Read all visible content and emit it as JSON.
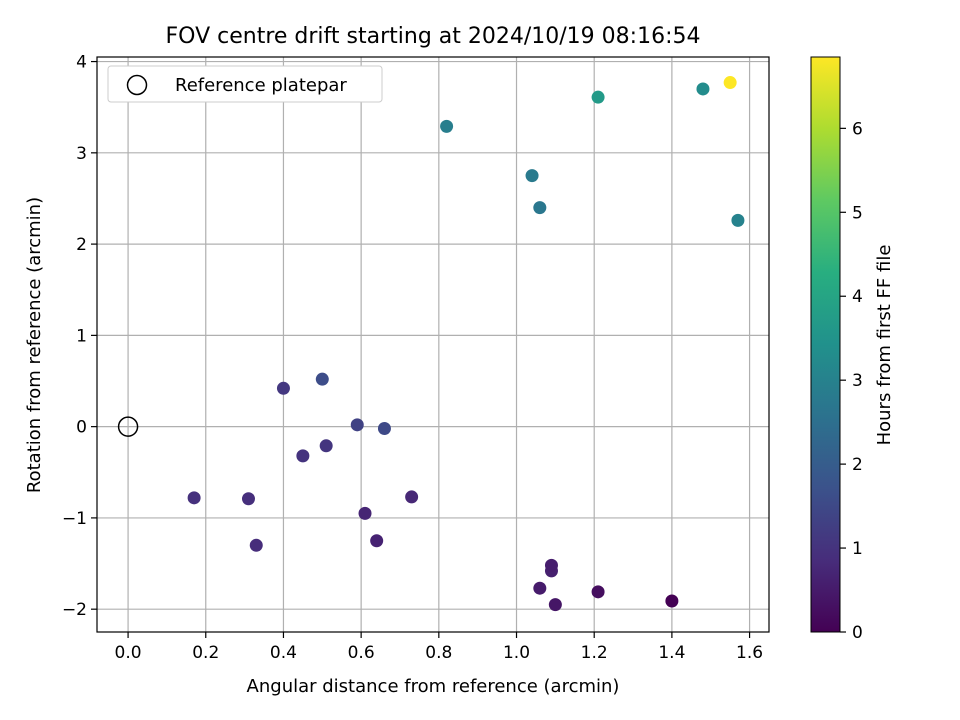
{
  "chart_data": {
    "type": "scatter",
    "title": "FOV centre drift starting at 2024/10/19 08:16:54",
    "xlabel": "Angular distance from reference (arcmin)",
    "ylabel": "Rotation from reference (arcmin)",
    "xlim": [
      -0.08,
      1.65
    ],
    "ylim": [
      -2.25,
      4.05
    ],
    "xticks": [
      "0.0",
      "0.2",
      "0.4",
      "0.6",
      "0.8",
      "1.0",
      "1.2",
      "1.4",
      "1.6"
    ],
    "yticks": [
      "−2",
      "−1",
      "0",
      "1",
      "2",
      "3",
      "4"
    ],
    "grid": true,
    "legend": {
      "position": "top-left",
      "label": "Reference platepar"
    },
    "reference": {
      "x": 0.0,
      "y": 0.0
    },
    "colorbar": {
      "label": "Hours from first FF file",
      "colormap": "viridis",
      "min": 0,
      "max": 6.85,
      "ticks": [
        "0",
        "1",
        "2",
        "3",
        "4",
        "5",
        "6"
      ]
    },
    "points": [
      {
        "x": 1.4,
        "y": -1.91,
        "hours": 0.0
      },
      {
        "x": 1.21,
        "y": -1.81,
        "hours": 0.25
      },
      {
        "x": 1.1,
        "y": -1.95,
        "hours": 0.4
      },
      {
        "x": 1.06,
        "y": -1.77,
        "hours": 0.5
      },
      {
        "x": 1.09,
        "y": -1.58,
        "hours": 0.6
      },
      {
        "x": 1.09,
        "y": -1.52,
        "hours": 0.55
      },
      {
        "x": 0.64,
        "y": -1.25,
        "hours": 0.65
      },
      {
        "x": 0.61,
        "y": -0.95,
        "hours": 0.7
      },
      {
        "x": 0.73,
        "y": -0.77,
        "hours": 0.75
      },
      {
        "x": 0.33,
        "y": -1.3,
        "hours": 0.85
      },
      {
        "x": 0.31,
        "y": -0.79,
        "hours": 0.9
      },
      {
        "x": 0.17,
        "y": -0.78,
        "hours": 0.95
      },
      {
        "x": 0.45,
        "y": -0.32,
        "hours": 1.0
      },
      {
        "x": 0.51,
        "y": -0.21,
        "hours": 1.05
      },
      {
        "x": 0.4,
        "y": 0.42,
        "hours": 1.1
      },
      {
        "x": 0.59,
        "y": 0.02,
        "hours": 1.35
      },
      {
        "x": 0.66,
        "y": -0.02,
        "hours": 1.5
      },
      {
        "x": 0.5,
        "y": 0.52,
        "hours": 1.6
      },
      {
        "x": 1.06,
        "y": 2.4,
        "hours": 2.7
      },
      {
        "x": 1.04,
        "y": 2.75,
        "hours": 2.8
      },
      {
        "x": 0.82,
        "y": 3.29,
        "hours": 2.9
      },
      {
        "x": 1.57,
        "y": 2.26,
        "hours": 3.0
      },
      {
        "x": 1.48,
        "y": 3.7,
        "hours": 3.3
      },
      {
        "x": 1.21,
        "y": 3.61,
        "hours": 3.7
      },
      {
        "x": 1.55,
        "y": 3.77,
        "hours": 6.85
      }
    ]
  }
}
